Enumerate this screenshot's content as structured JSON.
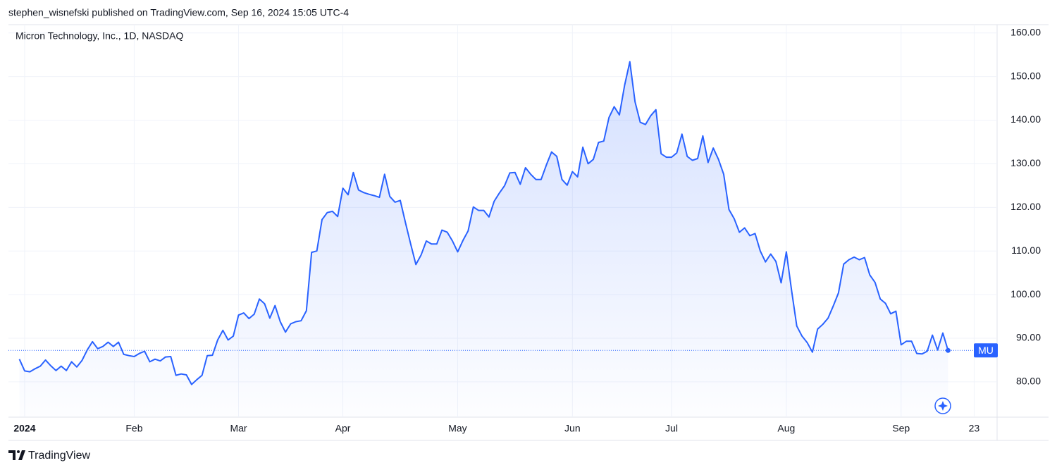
{
  "header": "stephen_wisnefski published on TradingView.com, Sep 16, 2024 15:05 UTC-4",
  "footer": "TradingView",
  "chart_data": {
    "type": "line",
    "title": "Micron Technology, Inc., 1D, NASDAQ",
    "series": [
      {
        "name": "MU",
        "color": "#2962ff",
        "values": [
          85.2,
          82.5,
          82.3,
          83.0,
          83.6,
          85.0,
          83.7,
          82.6,
          83.6,
          82.6,
          84.6,
          83.4,
          84.9,
          87.3,
          89.2,
          87.6,
          88.1,
          89.1,
          88.1,
          89.1,
          86.3,
          86.0,
          85.8,
          86.5,
          87.0,
          84.6,
          85.2,
          84.8,
          85.7,
          85.8,
          81.5,
          81.8,
          81.6,
          79.4,
          80.5,
          81.5,
          86.0,
          86.1,
          89.6,
          91.8,
          89.6,
          90.5,
          95.3,
          95.8,
          94.5,
          95.5,
          99.0,
          97.9,
          94.6,
          97.5,
          93.8,
          91.4,
          93.3,
          93.8,
          94.0,
          96.3,
          109.7,
          110.0,
          117.2,
          118.8,
          119.1,
          117.9,
          124.4,
          122.9,
          128.0,
          124.0,
          123.4,
          123.0,
          122.7,
          122.3,
          127.6,
          122.5,
          121.2,
          121.6,
          116.5,
          111.6,
          106.9,
          109.1,
          112.3,
          111.6,
          111.6,
          114.8,
          114.3,
          112.3,
          109.8,
          112.4,
          114.6,
          120.1,
          119.3,
          119.3,
          117.8,
          121.4,
          123.3,
          125.0,
          127.9,
          128.0,
          125.3,
          129.1,
          127.6,
          126.4,
          126.4,
          129.7,
          132.7,
          131.7,
          126.4,
          125.1,
          128.2,
          127.0,
          133.8,
          130.0,
          131.0,
          134.9,
          135.2,
          140.6,
          143.1,
          141.2,
          148.0,
          153.4,
          144.2,
          139.5,
          139.0,
          141.0,
          142.4,
          132.3,
          131.5,
          131.5,
          132.5,
          136.8,
          131.7,
          130.8,
          131.2,
          136.4,
          130.3,
          133.6,
          131.0,
          127.6,
          119.5,
          117.4,
          114.3,
          115.3,
          113.5,
          114.0,
          110.0,
          107.5,
          109.3,
          107.6,
          102.7,
          109.8,
          101.0,
          92.8,
          90.5,
          89.0,
          86.8,
          92.1,
          93.2,
          94.6,
          97.4,
          100.4,
          107.0,
          108.0,
          108.6,
          108.0,
          108.5,
          104.5,
          102.8,
          99.0,
          98.0,
          95.6,
          96.2,
          88.5,
          89.3,
          89.3,
          86.5,
          86.4,
          87.0,
          90.7,
          87.3,
          91.2,
          87.2
        ]
      }
    ],
    "xlim": [
      -2.1,
      187.4
    ],
    "xticks": [
      {
        "value": 1,
        "label": "2024"
      },
      {
        "value": 22,
        "label": "Feb"
      },
      {
        "value": 42,
        "label": "Mar"
      },
      {
        "value": 62,
        "label": "Apr"
      },
      {
        "value": 84,
        "label": "May"
      },
      {
        "value": 106,
        "label": "Jun"
      },
      {
        "value": 125,
        "label": "Jul"
      },
      {
        "value": 147,
        "label": "Aug"
      },
      {
        "value": 169,
        "label": "Sep"
      },
      {
        "value": 183,
        "label": "23"
      }
    ],
    "ylim": [
      71.9,
      161.9
    ],
    "yticks": [
      {
        "value": 80,
        "label": "80.00"
      },
      {
        "value": 90,
        "label": "90.00"
      },
      {
        "value": 100,
        "label": "100.00"
      },
      {
        "value": 110,
        "label": "110.00"
      },
      {
        "value": 120,
        "label": "120.00"
      },
      {
        "value": 130,
        "label": "130.00"
      },
      {
        "value": 140,
        "label": "140.00"
      },
      {
        "value": 150,
        "label": "150.00"
      },
      {
        "value": 160,
        "label": "160.00"
      }
    ],
    "grid": true
  }
}
